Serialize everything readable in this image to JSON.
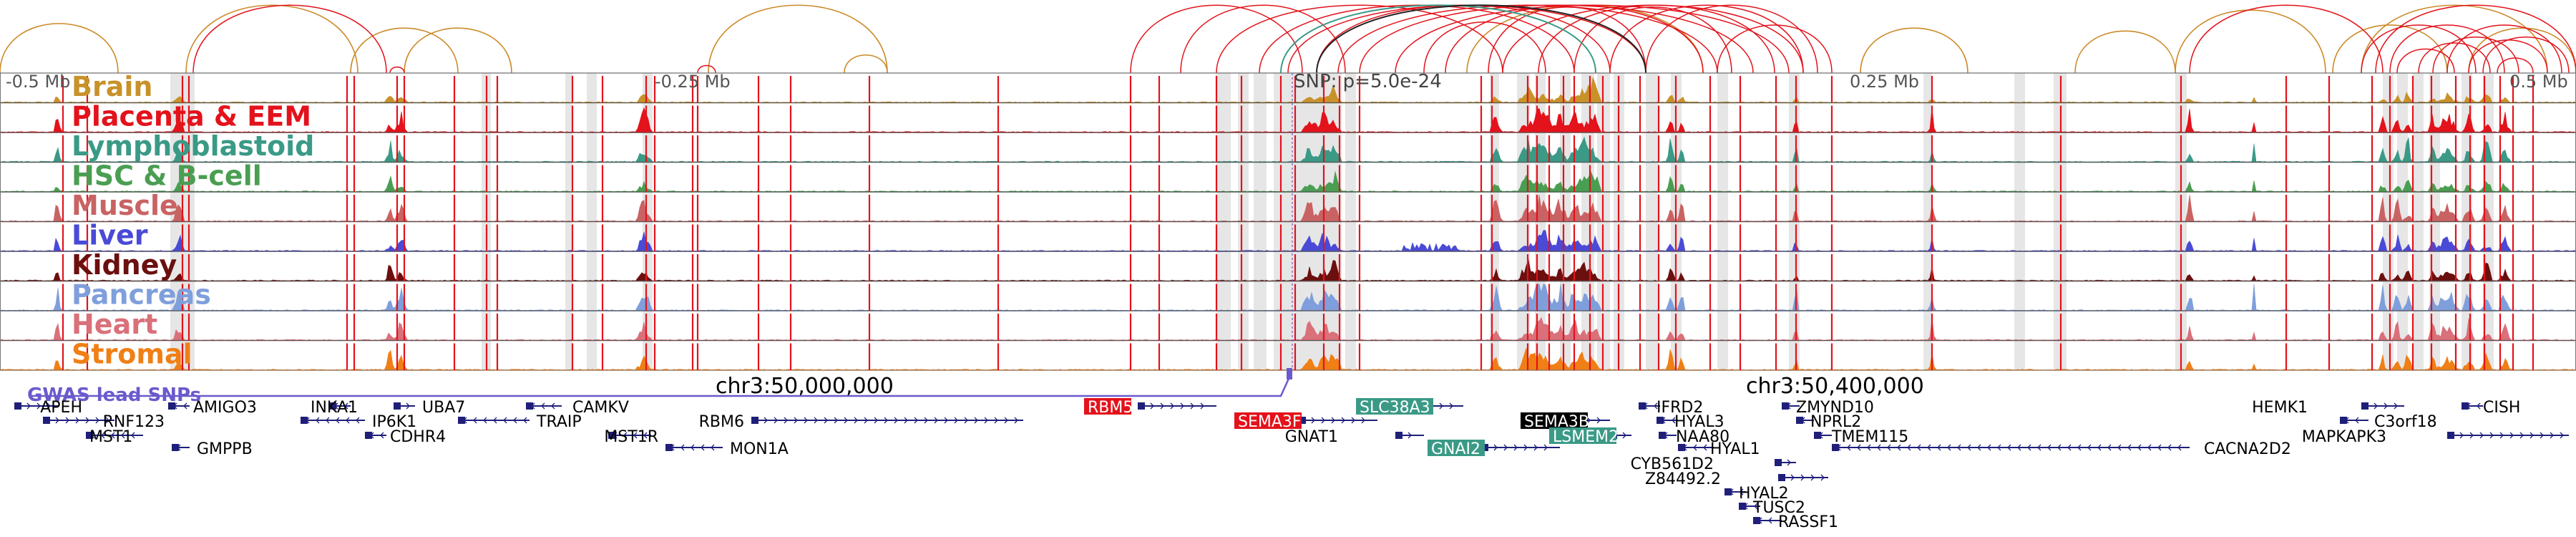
{
  "axis": {
    "top_ticks": [
      "-0.5 Mb",
      "-0.25 Mb",
      "0.25 Mb",
      "0.5 Mb"
    ],
    "snp_label": "SNP: p=5.0e-24",
    "coordinates": [
      "chr3:50,000,000",
      "chr3:50,400,000"
    ]
  },
  "tracks": [
    {
      "name": "Brain",
      "color": "#c8922a"
    },
    {
      "name": "Placenta & EEM",
      "color": "#e3121b"
    },
    {
      "name": "Lymphoblastoid",
      "color": "#3a9a86"
    },
    {
      "name": "HSC & B-cell",
      "color": "#4a9e52"
    },
    {
      "name": "Muscle",
      "color": "#c96363"
    },
    {
      "name": "Liver",
      "color": "#4a4ad6"
    },
    {
      "name": "Kidney",
      "color": "#6b0f0f"
    },
    {
      "name": "Pancreas",
      "color": "#7f9fdc"
    },
    {
      "name": "Heart",
      "color": "#d9707a"
    },
    {
      "name": "Stromal",
      "color": "#f07f16"
    }
  ],
  "gwas": {
    "label": "GWAS lead SNPs",
    "color": "#6a5acd"
  },
  "genes": [
    {
      "name": "APEH",
      "strand": "+",
      "highlight": ""
    },
    {
      "name": "RNF123",
      "strand": "+",
      "highlight": ""
    },
    {
      "name": "MST1",
      "strand": "-",
      "highlight": ""
    },
    {
      "name": "AMIGO3",
      "strand": "-",
      "highlight": ""
    },
    {
      "name": "GMPPB",
      "strand": "-",
      "highlight": ""
    },
    {
      "name": "INKA1",
      "strand": "-",
      "highlight": ""
    },
    {
      "name": "UBA7",
      "strand": "+",
      "highlight": ""
    },
    {
      "name": "IP6K1",
      "strand": "-",
      "highlight": ""
    },
    {
      "name": "CDHR4",
      "strand": "-",
      "highlight": ""
    },
    {
      "name": "CAMKV",
      "strand": "-",
      "highlight": ""
    },
    {
      "name": "TRAIP",
      "strand": "-",
      "highlight": ""
    },
    {
      "name": "MST1R",
      "strand": "-",
      "highlight": ""
    },
    {
      "name": "MON1A",
      "strand": "-",
      "highlight": ""
    },
    {
      "name": "RBM6",
      "strand": "+",
      "highlight": ""
    },
    {
      "name": "RBM5",
      "strand": "+",
      "highlight": "red"
    },
    {
      "name": "SEMA3F",
      "strand": "+",
      "highlight": "red"
    },
    {
      "name": "SLC38A3",
      "strand": "+",
      "highlight": "teal"
    },
    {
      "name": "GNAT1",
      "strand": "+",
      "highlight": ""
    },
    {
      "name": "GNAI2",
      "strand": "+",
      "highlight": "teal"
    },
    {
      "name": "SEMA3B",
      "strand": "+",
      "highlight": "black"
    },
    {
      "name": "LSMEM2",
      "strand": "+",
      "highlight": "teal"
    },
    {
      "name": "IFRD2",
      "strand": "-",
      "highlight": ""
    },
    {
      "name": "HYAL3",
      "strand": "-",
      "highlight": ""
    },
    {
      "name": "NAA80",
      "strand": "-",
      "highlight": ""
    },
    {
      "name": "HYAL1",
      "strand": "-",
      "highlight": ""
    },
    {
      "name": "CYB561D2",
      "strand": "+",
      "highlight": ""
    },
    {
      "name": "Z84492.2",
      "strand": "+",
      "highlight": ""
    },
    {
      "name": "HYAL2",
      "strand": "-",
      "highlight": ""
    },
    {
      "name": "TUSC2",
      "strand": "-",
      "highlight": ""
    },
    {
      "name": "RASSF1",
      "strand": "-",
      "highlight": ""
    },
    {
      "name": "ZMYND10",
      "strand": "-",
      "highlight": ""
    },
    {
      "name": "NPRL2",
      "strand": "-",
      "highlight": ""
    },
    {
      "name": "TMEM115",
      "strand": "-",
      "highlight": ""
    },
    {
      "name": "CACNA2D2",
      "strand": "-",
      "highlight": ""
    },
    {
      "name": "HEMK1",
      "strand": "+",
      "highlight": ""
    },
    {
      "name": "C3orf18",
      "strand": "-",
      "highlight": ""
    },
    {
      "name": "CISH",
      "strand": "-",
      "highlight": ""
    },
    {
      "name": "MAPKAPK3",
      "strand": "+",
      "highlight": ""
    }
  ]
}
